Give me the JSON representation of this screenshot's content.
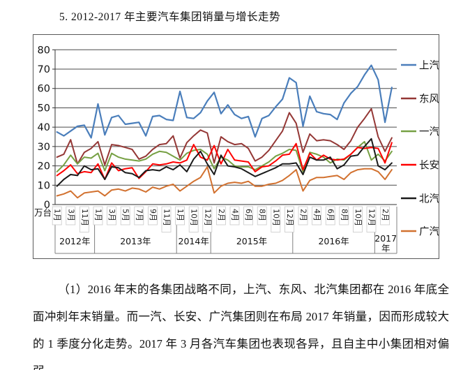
{
  "title": "5. 2012-2017 年主要汽车集团销量与增长走势",
  "caption": "（1）2016 年末的各集团战略不同，上汽、东风、北汽集团都在 2016 年底全面冲刺年末销量。而一汽、长安、广汽集团则在布局 2017 年销量，因而形成较大的 1 季度分化走势。2017 年 3 月各汽车集团也表现各异，且自主中小集团相对偏弱。",
  "chart_data": {
    "type": "line",
    "title": "2012-2017 年主要汽车集团销量与增长走势",
    "ylabel": "万台",
    "ylim": [
      0,
      80
    ],
    "yticks": [
      0,
      10,
      20,
      30,
      40,
      50,
      60,
      70,
      80
    ],
    "grid": true,
    "legend_position": "right",
    "years": [
      {
        "label": "2012年",
        "count": 6
      },
      {
        "label": "2013年",
        "count": 12
      },
      {
        "label": "2014年",
        "count": 5
      },
      {
        "label": "2015年",
        "count": 12
      },
      {
        "label": "2016年",
        "count": 12
      },
      {
        "label": "2017年",
        "count": 3
      }
    ],
    "months": [
      "2012-01",
      "2012-02",
      "2012-03",
      "2012-04",
      "2012-11",
      "2012-12",
      "2013-01",
      "2013-02",
      "2013-03",
      "2013-04",
      "2013-05",
      "2013-06",
      "2013-07",
      "2013-08",
      "2013-09",
      "2013-10",
      "2013-11",
      "2013-12",
      "2014-01",
      "2014-02",
      "2014-10",
      "2014-11",
      "2014-12",
      "2015-01",
      "2015-02",
      "2015-03",
      "2015-04",
      "2015-05",
      "2015-06",
      "2015-07",
      "2015-08",
      "2015-09",
      "2015-10",
      "2015-11",
      "2015-12",
      "2016-01",
      "2016-02",
      "2016-03",
      "2016-04",
      "2016-05",
      "2016-06",
      "2016-07",
      "2016-08",
      "2016-09",
      "2016-10",
      "2016-11",
      "2016-12",
      "2017-01",
      "2017-02",
      "2017-03"
    ],
    "tick_labels": [
      "1月",
      "",
      "3月",
      "",
      "11月",
      "",
      "1月",
      "",
      "3月",
      "",
      "5月",
      "",
      "7月",
      "",
      "9月",
      "",
      "11月",
      "",
      "1月",
      "",
      "10月",
      "",
      "12月",
      "",
      "2月",
      "",
      "4月",
      "",
      "6月",
      "",
      "8月",
      "",
      "10月",
      "",
      "12月",
      "",
      "2月",
      "",
      "4月",
      "",
      "6月",
      "",
      "8月",
      "",
      "10月",
      "",
      "12月",
      "",
      "2月",
      ""
    ],
    "series": [
      {
        "name": "上汽",
        "color": "#4A7EBB",
        "values": [
          37.5,
          35.5,
          38,
          40.5,
          41,
          34.5,
          52,
          36,
          45,
          46,
          41.5,
          42,
          42.5,
          35.5,
          45.5,
          46,
          44,
          43.5,
          58.5,
          45,
          44.5,
          47.5,
          53.5,
          58,
          47,
          51.5,
          46.5,
          44.5,
          45.5,
          35,
          44.5,
          46,
          50.5,
          54.5,
          65.5,
          63,
          40.5,
          56,
          48,
          47,
          46.5,
          44,
          52.5,
          57.5,
          61,
          67,
          72,
          64.5,
          42.5,
          60.5
        ]
      },
      {
        "name": "东风",
        "color": "#943735",
        "values": [
          24.5,
          26,
          33.5,
          21,
          27,
          29,
          32.5,
          20.5,
          31,
          30.5,
          29.5,
          28.5,
          23.5,
          25,
          28.5,
          31,
          31.5,
          35.5,
          24,
          32,
          35.5,
          38.5,
          37,
          21.5,
          35,
          32.5,
          31,
          31.5,
          29,
          22.5,
          24.5,
          28,
          33,
          38,
          47.5,
          42,
          27,
          36.5,
          33,
          33.5,
          33,
          31,
          28.5,
          33,
          40,
          44.5,
          49.5,
          35,
          27.5,
          34.5
        ]
      },
      {
        "name": "一汽",
        "color": "#76A043",
        "values": [
          17,
          20.5,
          25.5,
          21,
          24.5,
          24,
          26.5,
          17.5,
          26.5,
          24.5,
          23.5,
          23,
          22.5,
          23.5,
          26,
          27.5,
          27,
          25,
          23,
          26.5,
          28,
          28.5,
          26,
          18.5,
          24.5,
          23,
          20,
          19.5,
          19.5,
          18,
          20,
          22,
          25,
          26.5,
          28.5,
          28,
          17,
          27,
          26,
          24.5,
          21.5,
          23.5,
          23,
          26,
          29.5,
          32.5,
          23,
          26,
          22.5,
          27.5
        ]
      },
      {
        "name": "长安",
        "color": "#FF0000",
        "values": [
          15,
          17.5,
          20.5,
          16,
          17,
          16.5,
          21,
          13,
          21.5,
          17.5,
          18.5,
          19,
          13.5,
          17,
          21,
          20.5,
          21,
          22,
          21.5,
          23,
          31,
          24.5,
          23,
          30.5,
          21,
          28.5,
          23,
          22.5,
          22,
          17,
          19.5,
          20,
          22.5,
          25.5,
          26,
          31.5,
          18,
          26.5,
          23,
          25.5,
          23.5,
          23,
          23.5,
          26,
          29.5,
          29,
          29.5,
          29,
          21.5,
          32
        ]
      },
      {
        "name": "北汽",
        "color": "#1A1A1A",
        "values": [
          9.5,
          13,
          15.5,
          15,
          20,
          18,
          18.5,
          13,
          19.5,
          19,
          16.5,
          16,
          14,
          17.5,
          18,
          17.5,
          19.5,
          18,
          20.5,
          17,
          23.5,
          27.5,
          21,
          15.5,
          25.5,
          20,
          19.5,
          18.5,
          16.5,
          14.5,
          16,
          17.5,
          19,
          21,
          21,
          21.5,
          15.5,
          24.5,
          23,
          23,
          24.5,
          18.5,
          20.5,
          25,
          25.5,
          30,
          34,
          20,
          18,
          21.5
        ]
      },
      {
        "name": "广汽",
        "color": "#D2712F",
        "values": [
          4.5,
          5.5,
          7,
          3.5,
          6,
          6.5,
          7,
          4.5,
          7.5,
          8,
          7,
          8.5,
          8,
          6.5,
          9,
          8,
          9.5,
          10.5,
          7,
          9.5,
          12,
          14,
          19.5,
          6,
          9.5,
          11,
          11.5,
          11,
          12,
          9.5,
          9.5,
          10.5,
          11,
          12.5,
          15,
          18,
          7,
          12.5,
          14,
          14,
          14.5,
          15,
          13,
          16.5,
          18,
          18.5,
          18.5,
          17,
          13,
          18
        ]
      }
    ]
  },
  "colors": {
    "grid": "#4a4a4a",
    "axis": "#333333",
    "band_line": "#808080",
    "tickbox_border": "#c8c8c8",
    "outer_border": "#595959"
  }
}
